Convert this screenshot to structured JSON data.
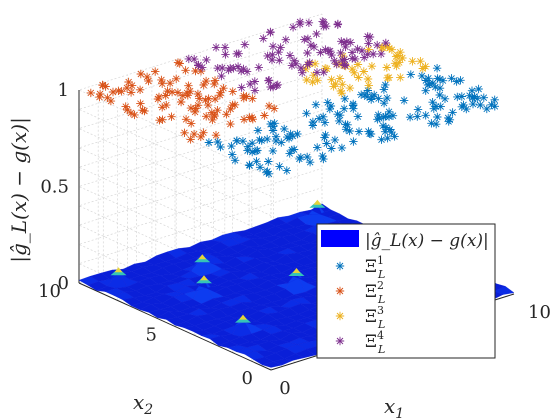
{
  "chart_data": {
    "type": "scatter",
    "subtype": "3d-surface-with-3d-scatter",
    "title": "",
    "xlabel": "x_1",
    "ylabel": "x_2",
    "zlabel": "|ĝ_L(x) − g(x)|",
    "xlim": [
      0,
      10
    ],
    "ylim": [
      0,
      10
    ],
    "zlim": [
      0,
      1
    ],
    "x_ticks": [
      "0",
      "10"
    ],
    "y_ticks": [
      "0",
      "5",
      "10"
    ],
    "z_ticks": [
      "0",
      "0.5",
      "1"
    ],
    "grid": true,
    "legend_position": "bottom-right",
    "surface": {
      "name": "|ĝ_L(x) − g(x)|",
      "colormap": "parula",
      "typical_z": 0.02,
      "peak_z": 0.1
    },
    "series": [
      {
        "name": "Ξ_L^1",
        "marker": "*",
        "color": "#0072BD",
        "z": 1,
        "region": {
          "x": [
            0,
            10
          ],
          "y": [
            0,
            4
          ]
        }
      },
      {
        "name": "Ξ_L^2",
        "marker": "*",
        "color": "#D95319",
        "z": 1,
        "region": {
          "x": [
            0,
            4
          ],
          "y": [
            4,
            10
          ]
        }
      },
      {
        "name": "Ξ_L^3",
        "marker": "*",
        "color": "#EDB120",
        "z": 1,
        "region": {
          "x": [
            6,
            10
          ],
          "y": [
            4,
            7
          ]
        }
      },
      {
        "name": "Ξ_L^4",
        "marker": "*",
        "color": "#7E2F8E",
        "z": 1,
        "region": {
          "x": [
            4,
            10
          ],
          "y": [
            6,
            10
          ]
        }
      }
    ]
  }
}
